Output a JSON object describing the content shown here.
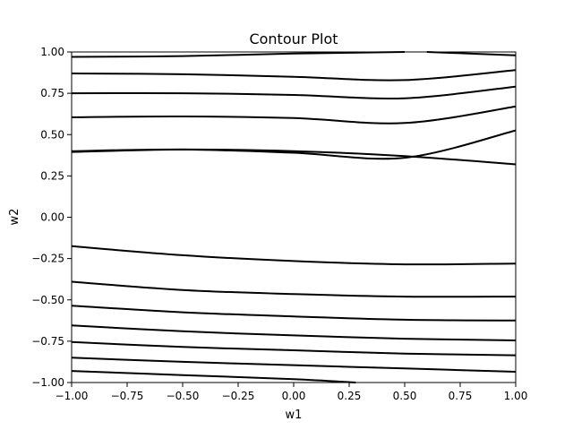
{
  "chart_data": {
    "type": "contour",
    "title": "Contour Plot",
    "xlabel": "w1",
    "ylabel": "w2",
    "xlim": [
      -1.0,
      1.0
    ],
    "ylim": [
      -1.0,
      1.0
    ],
    "xticks": [
      "−1.00",
      "−0.75",
      "−0.50",
      "−0.25",
      "0.00",
      "0.25",
      "0.50",
      "0.75",
      "1.00"
    ],
    "yticks": [
      "−1.00",
      "−0.75",
      "−0.50",
      "−0.25",
      "0.00",
      "0.25",
      "0.50",
      "0.75",
      "1.00"
    ],
    "grid": false,
    "line_color": "#000000",
    "contours": [
      {
        "points": [
          [
            -1.0,
            0.97
          ],
          [
            -0.5,
            0.975
          ],
          [
            0.0,
            0.99
          ],
          [
            0.5,
            1.0
          ]
        ]
      },
      {
        "points": [
          [
            0.6,
            1.0
          ],
          [
            1.0,
            0.98
          ]
        ]
      },
      {
        "points": [
          [
            -1.0,
            0.87
          ],
          [
            -0.5,
            0.865
          ],
          [
            0.0,
            0.85
          ],
          [
            0.5,
            0.83
          ],
          [
            1.0,
            0.89
          ]
        ]
      },
      {
        "points": [
          [
            -1.0,
            0.75
          ],
          [
            -0.5,
            0.75
          ],
          [
            0.0,
            0.74
          ],
          [
            0.5,
            0.72
          ],
          [
            1.0,
            0.79
          ]
        ]
      },
      {
        "points": [
          [
            -1.0,
            0.605
          ],
          [
            -0.5,
            0.61
          ],
          [
            0.0,
            0.6
          ],
          [
            0.5,
            0.57
          ],
          [
            1.0,
            0.67
          ]
        ]
      },
      {
        "points": [
          [
            -1.0,
            0.395
          ],
          [
            -0.5,
            0.41
          ],
          [
            0.0,
            0.4
          ],
          [
            0.5,
            0.37
          ],
          [
            1.0,
            0.32
          ]
        ]
      },
      {
        "points": [
          [
            -1.0,
            0.4
          ],
          [
            -0.5,
            0.41
          ],
          [
            0.0,
            0.39
          ],
          [
            0.5,
            0.36
          ],
          [
            1.0,
            0.525
          ]
        ]
      },
      {
        "points": [
          [
            -1.0,
            -0.175
          ],
          [
            -0.5,
            -0.23
          ],
          [
            0.0,
            -0.265
          ],
          [
            0.5,
            -0.285
          ],
          [
            1.0,
            -0.28
          ]
        ]
      },
      {
        "points": [
          [
            -1.0,
            -0.39
          ],
          [
            -0.5,
            -0.44
          ],
          [
            0.0,
            -0.465
          ],
          [
            0.5,
            -0.48
          ],
          [
            1.0,
            -0.48
          ]
        ]
      },
      {
        "points": [
          [
            -1.0,
            -0.535
          ],
          [
            -0.5,
            -0.575
          ],
          [
            0.0,
            -0.6
          ],
          [
            0.5,
            -0.62
          ],
          [
            1.0,
            -0.625
          ]
        ]
      },
      {
        "points": [
          [
            -1.0,
            -0.655
          ],
          [
            -0.5,
            -0.69
          ],
          [
            0.0,
            -0.715
          ],
          [
            0.5,
            -0.735
          ],
          [
            1.0,
            -0.745
          ]
        ]
      },
      {
        "points": [
          [
            -1.0,
            -0.755
          ],
          [
            -0.5,
            -0.785
          ],
          [
            0.0,
            -0.805
          ],
          [
            0.5,
            -0.825
          ],
          [
            1.0,
            -0.835
          ]
        ]
      },
      {
        "points": [
          [
            -1.0,
            -0.85
          ],
          [
            -0.5,
            -0.875
          ],
          [
            0.0,
            -0.895
          ],
          [
            0.5,
            -0.915
          ],
          [
            1.0,
            -0.935
          ]
        ]
      },
      {
        "points": [
          [
            -1.0,
            -0.93
          ],
          [
            -0.5,
            -0.955
          ],
          [
            0.0,
            -0.98
          ],
          [
            0.28,
            -1.0
          ]
        ]
      }
    ]
  }
}
